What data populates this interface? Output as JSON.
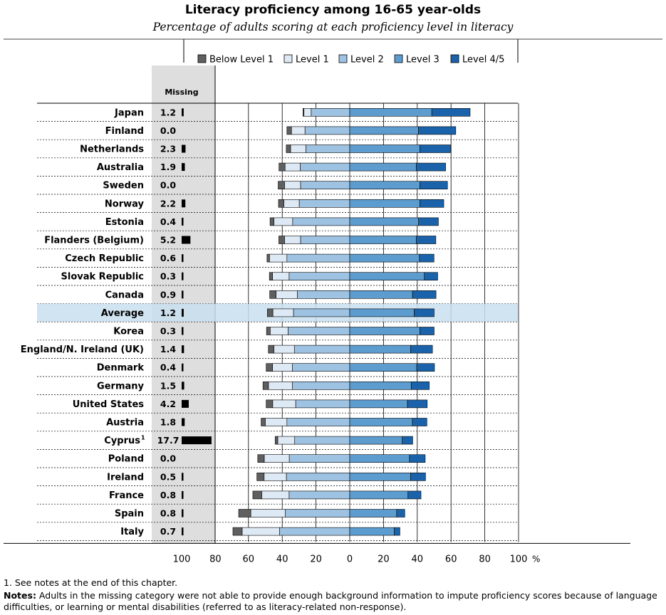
{
  "header": {
    "title": "Literacy proficiency among 16-65 year-olds",
    "subtitle": "Percentage of adults scoring at each proficiency level in literacy"
  },
  "footer": {
    "footnote": "1. See notes at the end of this chapter.",
    "notes_label": "Notes:",
    "notes_text": " Adults in the missing category were not able to provide enough background information to impute proficiency scores because of language difficulties, or learning or mental disabilities (referred to as literacy-related non-response)."
  },
  "chart_data": {
    "type": "bar",
    "orientation": "horizontal-diverging",
    "missing_header": "Missing",
    "legend": [
      {
        "name": "Below Level 1",
        "color": "#5f5f5f"
      },
      {
        "name": "Level 1",
        "color": "#dde9f5"
      },
      {
        "name": "Level 2",
        "color": "#9ec2e2"
      },
      {
        "name": "Level 3",
        "color": "#5d9ccf"
      },
      {
        "name": "Level 4/5",
        "color": "#1a63aa"
      }
    ],
    "missing_axis_ticks": [
      "100",
      "80"
    ],
    "main_axis_ticks": [
      "60",
      "40",
      "20",
      "0",
      "20",
      "40",
      "60",
      "80",
      "100"
    ],
    "axis_unit": "%",
    "highlight_row": "Average",
    "highlight_color": "#c9dff0",
    "rows": [
      {
        "label": "Japan",
        "sup": "",
        "missing": "1.2",
        "below1": 0.6,
        "level1": 4.3,
        "level2": 22.8,
        "level3": 48.6,
        "level45": 22.7
      },
      {
        "label": "Finland",
        "sup": "",
        "missing": "0.0",
        "below1": 2.7,
        "level1": 8.0,
        "level2": 26.5,
        "level3": 40.7,
        "level45": 22.1
      },
      {
        "label": "Netherlands",
        "sup": "",
        "missing": "2.3",
        "below1": 2.6,
        "level1": 9.1,
        "level2": 25.9,
        "level3": 41.5,
        "level45": 18.2
      },
      {
        "label": "Australia",
        "sup": "",
        "missing": "1.9",
        "below1": 3.6,
        "level1": 9.0,
        "level2": 29.3,
        "level3": 39.4,
        "level45": 17.4
      },
      {
        "label": "Sweden",
        "sup": "",
        "missing": "0.0",
        "below1": 3.8,
        "level1": 9.5,
        "level2": 29.1,
        "level3": 41.6,
        "level45": 16.3
      },
      {
        "label": "Norway",
        "sup": "",
        "missing": "2.2",
        "below1": 3.2,
        "level1": 9.1,
        "level2": 29.9,
        "level3": 41.6,
        "level45": 14.1
      },
      {
        "label": "Estonia",
        "sup": "",
        "missing": "0.4",
        "below1": 2.3,
        "level1": 11.1,
        "level2": 33.8,
        "level3": 40.8,
        "level45": 11.7
      },
      {
        "label": "Flanders (Belgium)",
        "sup": "",
        "missing": "5.2",
        "below1": 3.4,
        "level1": 9.5,
        "level2": 29.1,
        "level3": 39.4,
        "level45": 11.6
      },
      {
        "label": "Czech Republic",
        "sup": "",
        "missing": "0.6",
        "below1": 1.5,
        "level1": 10.3,
        "level2": 37.2,
        "level3": 41.3,
        "level45": 8.6
      },
      {
        "label": "Slovak Republic",
        "sup": "",
        "missing": "0.3",
        "below1": 1.9,
        "level1": 9.8,
        "level2": 35.9,
        "level3": 44.2,
        "level45": 7.9
      },
      {
        "label": "Canada",
        "sup": "",
        "missing": "0.9",
        "below1": 3.8,
        "level1": 12.6,
        "level2": 31.0,
        "level3": 37.2,
        "level45": 13.9
      },
      {
        "label": "Average",
        "sup": "",
        "missing": "1.2",
        "below1": 3.3,
        "level1": 12.2,
        "level2": 33.3,
        "level3": 38.2,
        "level45": 11.8
      },
      {
        "label": "Korea",
        "sup": "",
        "missing": "0.3",
        "below1": 2.2,
        "level1": 10.6,
        "level2": 36.5,
        "level3": 41.5,
        "level45": 8.5
      },
      {
        "label": "England/N. Ireland (UK)",
        "sup": "",
        "missing": "1.4",
        "below1": 3.3,
        "level1": 12.1,
        "level2": 32.8,
        "level3": 36.0,
        "level45": 13.0
      },
      {
        "label": "Denmark",
        "sup": "",
        "missing": "0.4",
        "below1": 3.8,
        "level1": 11.7,
        "level2": 34.0,
        "level3": 39.7,
        "level45": 10.5
      },
      {
        "label": "Germany",
        "sup": "",
        "missing": "1.5",
        "below1": 3.3,
        "level1": 14.2,
        "level2": 33.9,
        "level3": 36.4,
        "level45": 10.7
      },
      {
        "label": "United States",
        "sup": "",
        "missing": "4.2",
        "below1": 3.9,
        "level1": 13.6,
        "level2": 32.0,
        "level3": 34.2,
        "level45": 11.7
      },
      {
        "label": "Austria",
        "sup": "",
        "missing": "1.8",
        "below1": 2.5,
        "level1": 12.8,
        "level2": 37.2,
        "level3": 37.1,
        "level45": 8.6
      },
      {
        "label": "Cyprus",
        "sup": "1",
        "missing": "17.7",
        "below1": 1.6,
        "level1": 10.0,
        "level2": 32.6,
        "level3": 31.1,
        "level45": 6.2
      },
      {
        "label": "Poland",
        "sup": "",
        "missing": "0.0",
        "below1": 3.9,
        "level1": 14.8,
        "level2": 35.8,
        "level3": 35.4,
        "level45": 9.3
      },
      {
        "label": "Ireland",
        "sup": "",
        "missing": "0.5",
        "below1": 4.3,
        "level1": 13.2,
        "level2": 37.5,
        "level3": 36.0,
        "level45": 8.9
      },
      {
        "label": "France",
        "sup": "",
        "missing": "0.8",
        "below1": 5.3,
        "level1": 16.2,
        "level2": 35.9,
        "level3": 34.5,
        "level45": 7.7
      },
      {
        "label": "Spain",
        "sup": "",
        "missing": "0.8",
        "below1": 7.2,
        "level1": 20.5,
        "level2": 38.1,
        "level3": 27.8,
        "level45": 4.8
      },
      {
        "label": "Italy",
        "sup": "",
        "missing": "0.7",
        "below1": 5.5,
        "level1": 22.2,
        "level2": 41.5,
        "level3": 26.4,
        "level45": 3.3
      }
    ]
  }
}
